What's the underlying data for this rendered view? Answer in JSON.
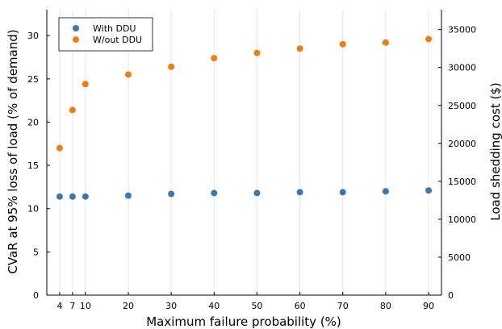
{
  "chart_data": {
    "type": "scatter",
    "title": "",
    "xlabel": "Maximum failure probability (%)",
    "ylabel": "CVaR at 95% loss of load (% of demand)",
    "y2label": "Load shedding cost ($)",
    "x": [
      4,
      7,
      10,
      20,
      30,
      40,
      50,
      60,
      70,
      80,
      90
    ],
    "xticks": [
      4,
      7,
      10,
      20,
      30,
      40,
      50,
      60,
      70,
      80,
      90
    ],
    "xlim": [
      1,
      93
    ],
    "ylim": [
      0,
      33
    ],
    "yticks": [
      0,
      5,
      10,
      15,
      20,
      25,
      30
    ],
    "y2lim": [
      0,
      37620
    ],
    "y2ticks": [
      0,
      5000,
      10000,
      15000,
      20000,
      25000,
      30000,
      35000
    ],
    "grid": true,
    "legend_position": "top-left",
    "series": [
      {
        "name": "With DDU",
        "color": "#3a78b5",
        "values": [
          11.4,
          11.4,
          11.4,
          11.5,
          11.7,
          11.8,
          11.8,
          11.9,
          11.9,
          12.0,
          12.1
        ]
      },
      {
        "name": "W/out DDU",
        "color": "#f07f09",
        "values": [
          17.0,
          21.4,
          24.4,
          25.5,
          26.4,
          27.4,
          28.0,
          28.5,
          29.0,
          29.2,
          29.6
        ]
      }
    ]
  }
}
